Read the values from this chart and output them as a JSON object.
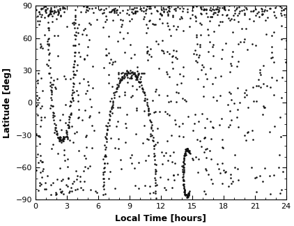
{
  "title": "",
  "xlabel": "Local Time [hours]",
  "ylabel": "Latitude [deg]",
  "xlim": [
    0,
    24
  ],
  "ylim": [
    -90,
    90
  ],
  "xticks": [
    0,
    3,
    6,
    9,
    12,
    15,
    18,
    21,
    24
  ],
  "yticks": [
    -90,
    -60,
    -30,
    0,
    30,
    60,
    90
  ],
  "dot_color": "#111111",
  "dot_size": 3.5,
  "background_color": "#ffffff",
  "figsize": [
    4.22,
    3.24
  ],
  "dpi": 100
}
